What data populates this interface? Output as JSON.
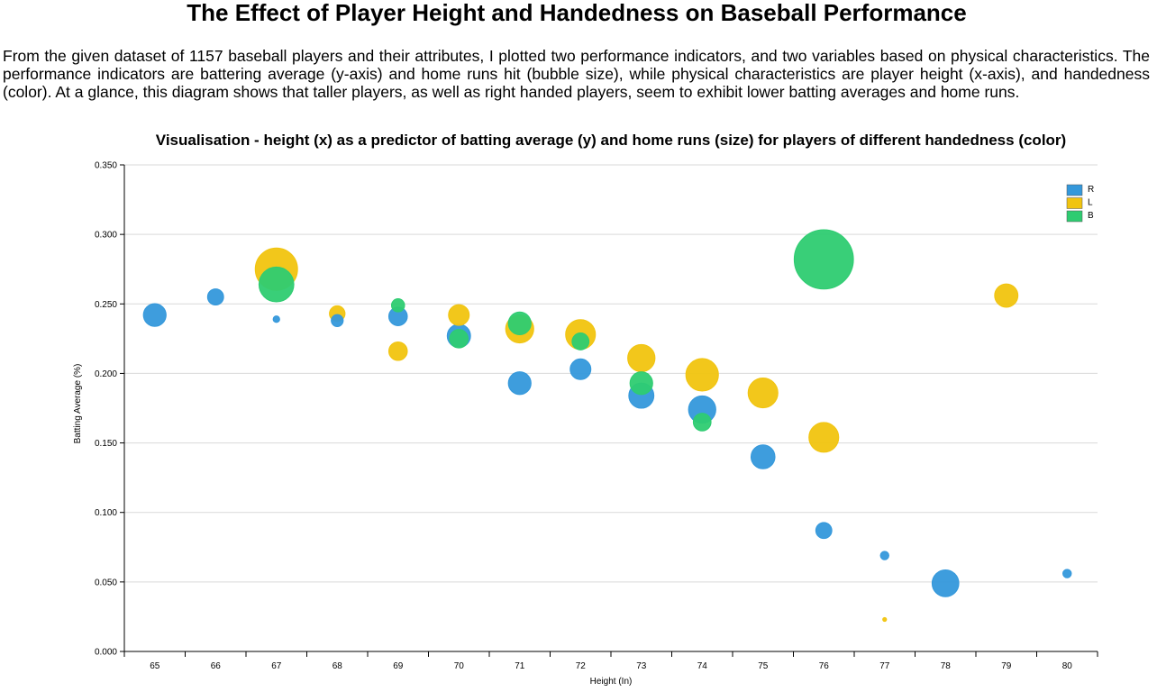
{
  "page": {
    "title": "The Effect of Player Height and Handedness on Baseball Performance",
    "intro": "From the given dataset of 1157 baseball players and their attributes, I plotted two performance indicators, and two variables based on physical characteristics. The performance indicators are battering average (y-axis) and home runs hit (bubble size), while physical characteristics are player height (x-axis), and handedness (color). At a glance, this diagram shows that taller players, as well as right handed players, seem to exhibit lower batting averages and home runs."
  },
  "chart_data": {
    "type": "scatter",
    "title": "Visualisation - height (x) as a predictor of batting average (y) and home runs (size) for players of different handedness (color)",
    "xlabel": "Height (In)",
    "ylabel": "Batting Average (%)",
    "x_categories": [
      "65",
      "66",
      "67",
      "68",
      "69",
      "70",
      "71",
      "72",
      "73",
      "74",
      "75",
      "76",
      "77",
      "78",
      "79",
      "80"
    ],
    "y_ticks": [
      "0.000",
      "0.050",
      "0.100",
      "0.150",
      "0.200",
      "0.250",
      "0.300",
      "0.350"
    ],
    "ylim": [
      0,
      0.35
    ],
    "grid": "horizontal",
    "legend_position": "top-right",
    "series": [
      {
        "name": "R",
        "color": "#3498db",
        "points": [
          {
            "x": 65,
            "y": 0.242,
            "hr": 36
          },
          {
            "x": 66,
            "y": 0.255,
            "hr": 18
          },
          {
            "x": 67,
            "y": 0.239,
            "hr": 3
          },
          {
            "x": 68,
            "y": 0.238,
            "hr": 10
          },
          {
            "x": 69,
            "y": 0.241,
            "hr": 24
          },
          {
            "x": 70,
            "y": 0.227,
            "hr": 38
          },
          {
            "x": 71,
            "y": 0.193,
            "hr": 36
          },
          {
            "x": 72,
            "y": 0.203,
            "hr": 30
          },
          {
            "x": 73,
            "y": 0.184,
            "hr": 44
          },
          {
            "x": 74,
            "y": 0.174,
            "hr": 52
          },
          {
            "x": 75,
            "y": 0.14,
            "hr": 40
          },
          {
            "x": 76,
            "y": 0.087,
            "hr": 18
          },
          {
            "x": 77,
            "y": 0.069,
            "hr": 5
          },
          {
            "x": 78,
            "y": 0.049,
            "hr": 50
          },
          {
            "x": 80,
            "y": 0.056,
            "hr": 5
          }
        ]
      },
      {
        "name": "L",
        "color": "#f1c40f",
        "points": [
          {
            "x": 67,
            "y": 0.275,
            "hr": 125
          },
          {
            "x": 68,
            "y": 0.243,
            "hr": 17
          },
          {
            "x": 69,
            "y": 0.216,
            "hr": 24
          },
          {
            "x": 70,
            "y": 0.242,
            "hr": 30
          },
          {
            "x": 71,
            "y": 0.232,
            "hr": 55
          },
          {
            "x": 72,
            "y": 0.228,
            "hr": 62
          },
          {
            "x": 73,
            "y": 0.211,
            "hr": 52
          },
          {
            "x": 74,
            "y": 0.199,
            "hr": 74
          },
          {
            "x": 75,
            "y": 0.186,
            "hr": 62
          },
          {
            "x": 76,
            "y": 0.154,
            "hr": 62
          },
          {
            "x": 77,
            "y": 0.023,
            "hr": 1
          },
          {
            "x": 79,
            "y": 0.256,
            "hr": 38
          }
        ]
      },
      {
        "name": "B",
        "color": "#2ecc71",
        "points": [
          {
            "x": 67,
            "y": 0.264,
            "hr": 85
          },
          {
            "x": 69,
            "y": 0.249,
            "hr": 12
          },
          {
            "x": 70,
            "y": 0.225,
            "hr": 24
          },
          {
            "x": 71,
            "y": 0.236,
            "hr": 36
          },
          {
            "x": 72,
            "y": 0.223,
            "hr": 20
          },
          {
            "x": 73,
            "y": 0.193,
            "hr": 36
          },
          {
            "x": 74,
            "y": 0.165,
            "hr": 22
          },
          {
            "x": 76,
            "y": 0.282,
            "hr": 245
          }
        ]
      }
    ]
  }
}
